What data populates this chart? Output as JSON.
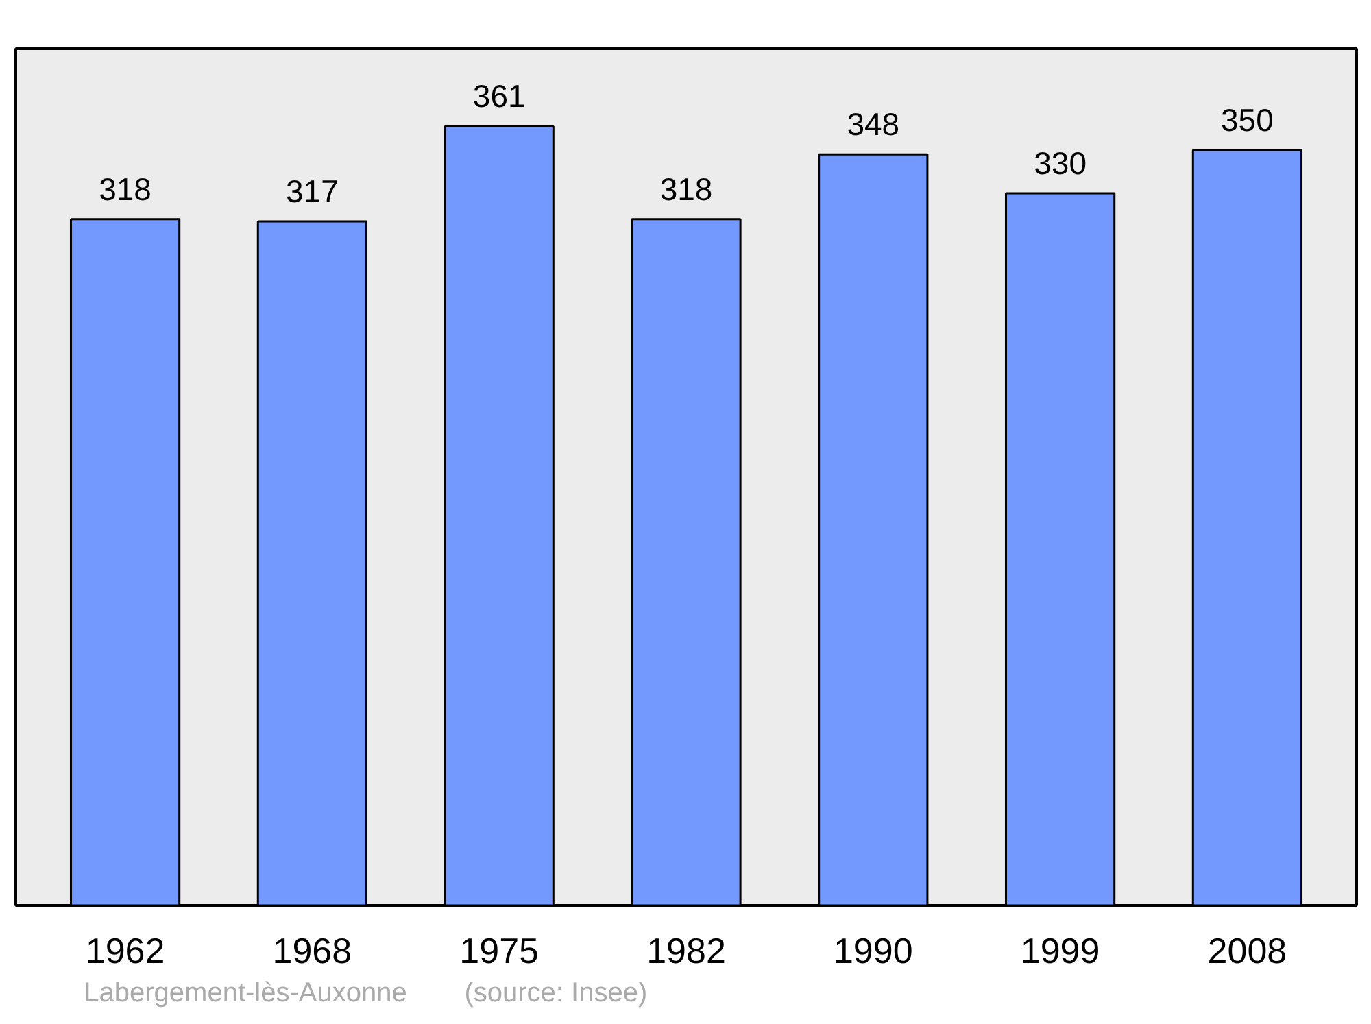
{
  "chart_data": {
    "type": "bar",
    "categories": [
      "1962",
      "1968",
      "1975",
      "1982",
      "1990",
      "1999",
      "2008"
    ],
    "values": [
      318,
      317,
      361,
      318,
      348,
      330,
      350
    ],
    "color": "#7399ff",
    "data_labels": true,
    "ylim": [
      0,
      397
    ],
    "tick_labels": "x",
    "grid": false,
    "annotations": [
      "Labergement-lès-Auxonne",
      "(source: Insee)"
    ]
  }
}
